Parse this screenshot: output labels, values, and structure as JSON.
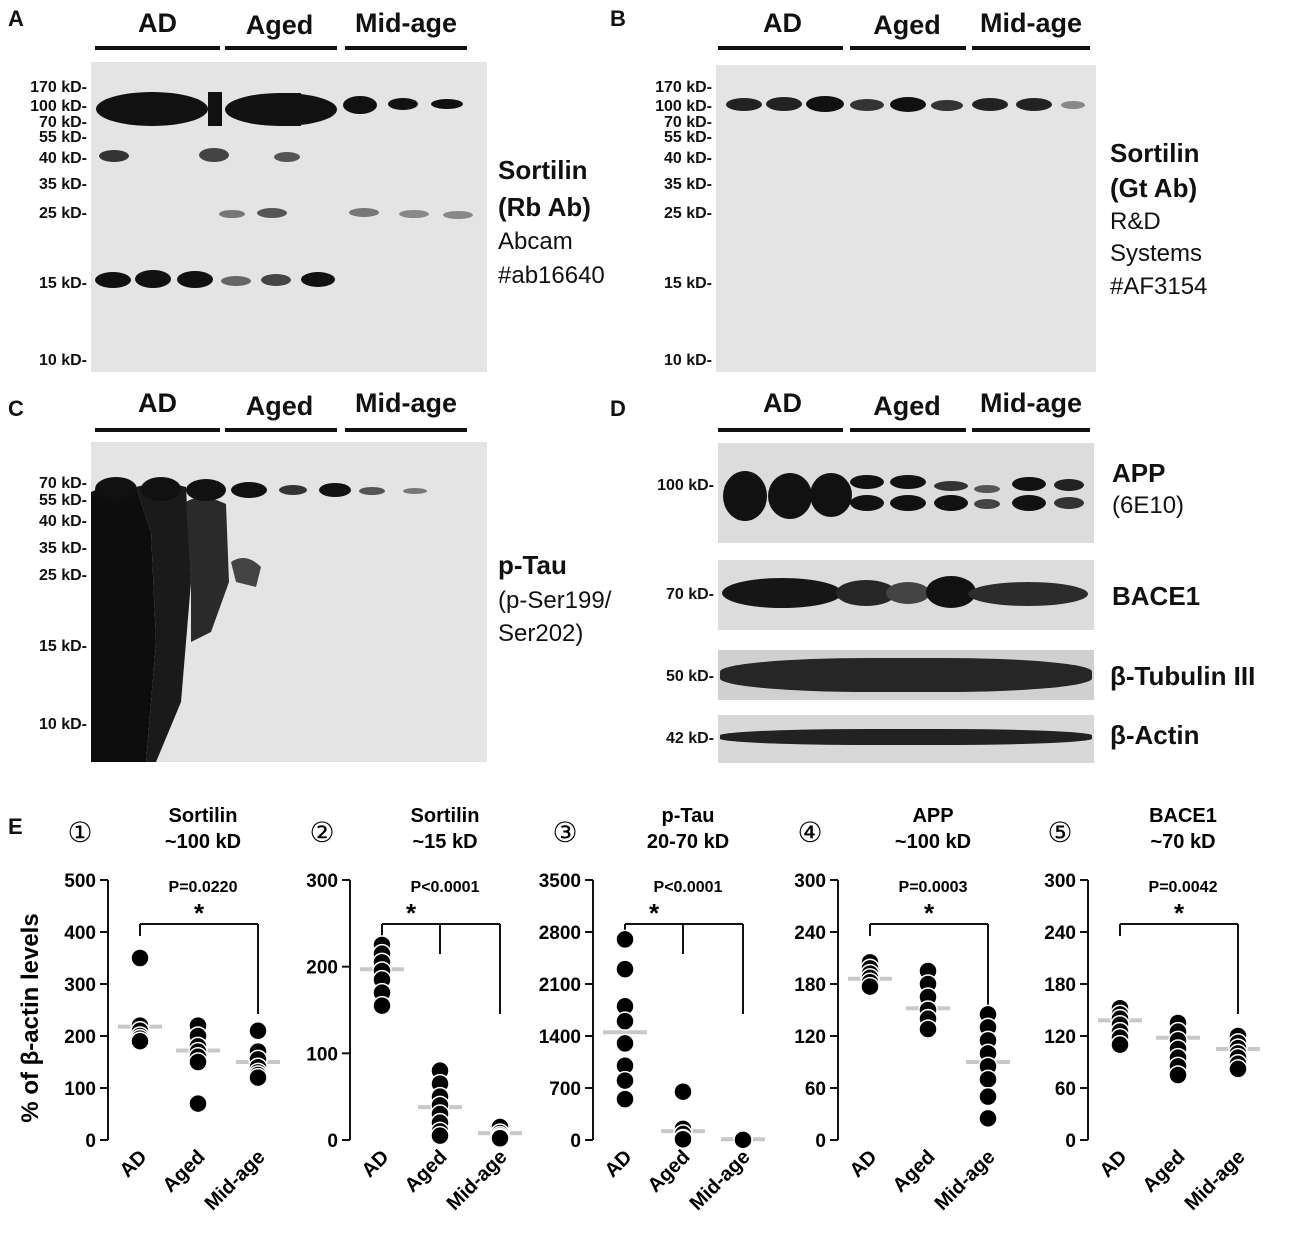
{
  "groups": [
    "AD",
    "Aged",
    "Mid-age"
  ],
  "panels": {
    "A": {
      "letter": "A",
      "mw": [
        "170 kD-",
        "100 kD-",
        "70 kD-",
        "55 kD-",
        "40 kD-",
        "35 kD-",
        "25 kD-",
        "15 kD-",
        "10 kD-"
      ],
      "label": [
        "Sortilin",
        "(Rb Ab)"
      ],
      "source": [
        "Abcam",
        "#ab16640"
      ]
    },
    "B": {
      "letter": "B",
      "mw": [
        "170 kD-",
        "100 kD-",
        "70 kD-",
        "55 kD-",
        "40 kD-",
        "35 kD-",
        "25 kD-",
        "15 kD-",
        "10 kD-"
      ],
      "label": [
        "Sortilin",
        "(Gt Ab)"
      ],
      "source": [
        "R&D",
        "Systems",
        "#AF3154"
      ]
    },
    "C": {
      "letter": "C",
      "mw": [
        "70 kD-",
        "55 kD-",
        "40 kD-",
        "35 kD-",
        "25 kD-",
        "15 kD-",
        "10 kD-"
      ],
      "label": "p-Tau",
      "source": [
        "(p-Ser199/",
        "Ser202)"
      ]
    },
    "D": {
      "letter": "D",
      "blots": [
        {
          "mw": "100 kD-",
          "label": "APP",
          "sub": "(6E10)"
        },
        {
          "mw": "70 kD-",
          "label": "BACE1",
          "sub": ""
        },
        {
          "mw": "50 kD-",
          "label": "β-Tubulin III",
          "sub": ""
        },
        {
          "mw": "42 kD-",
          "label": "β-Actin",
          "sub": ""
        }
      ]
    },
    "E": {
      "letter": "E",
      "ylabel": "% of β-actin levels"
    }
  },
  "chart_data": [
    {
      "type": "scatter",
      "index": "①",
      "title": [
        "Sortilin",
        "~100 kD"
      ],
      "pvalue": "P=0.0220",
      "categories": [
        "AD",
        "Aged",
        "Mid-age"
      ],
      "ylabel": "% of β-actin levels",
      "yticks": [
        "0",
        "100",
        "200",
        "300",
        "400",
        "500"
      ],
      "ylim": [
        0,
        500
      ],
      "significance": {
        "marker": "*",
        "from": "AD",
        "to": [
          "Mid-age"
        ]
      },
      "points": [
        [
          350,
          220,
          210,
          200,
          195,
          190
        ],
        [
          220,
          200,
          180,
          170,
          160,
          150,
          70
        ],
        [
          210,
          170,
          155,
          140,
          130,
          125,
          120
        ]
      ],
      "means": [
        218,
        172,
        150
      ]
    },
    {
      "type": "scatter",
      "index": "②",
      "title": [
        "Sortilin",
        "~15 kD"
      ],
      "pvalue": "P<0.0001",
      "categories": [
        "AD",
        "Aged",
        "Mid-age"
      ],
      "yticks": [
        "0",
        "100",
        "200",
        "300"
      ],
      "ylim": [
        0,
        300
      ],
      "significance": {
        "marker": "*",
        "from": "AD",
        "to": [
          "Aged",
          "Mid-age"
        ]
      },
      "points": [
        [
          225,
          215,
          205,
          195,
          185,
          170,
          155
        ],
        [
          80,
          65,
          50,
          40,
          30,
          20,
          10,
          5
        ],
        [
          15,
          8,
          5,
          3,
          2
        ]
      ],
      "means": [
        197,
        38,
        8
      ]
    },
    {
      "type": "scatter",
      "index": "③",
      "title": [
        "p-Tau",
        "20-70 kD"
      ],
      "pvalue": "P<0.0001",
      "categories": [
        "AD",
        "Aged",
        "Mid-age"
      ],
      "yticks": [
        "0",
        "700",
        "1400",
        "2100",
        "2800",
        "3500"
      ],
      "ylim": [
        0,
        3500
      ],
      "significance": {
        "marker": "*",
        "from": "AD",
        "to": [
          "Aged",
          "Mid-age"
        ]
      },
      "points": [
        [
          2700,
          2300,
          1800,
          1600,
          1300,
          1000,
          800,
          550
        ],
        [
          650,
          150,
          80,
          20,
          10
        ],
        [
          20,
          10,
          5,
          2
        ]
      ],
      "means": [
        1450,
        120,
        10
      ]
    },
    {
      "type": "scatter",
      "index": "④",
      "title": [
        "APP",
        "~100 kD"
      ],
      "pvalue": "P=0.0003",
      "categories": [
        "AD",
        "Aged",
        "Mid-age"
      ],
      "yticks": [
        "0",
        "60",
        "120",
        "180",
        "240",
        "300"
      ],
      "ylim": [
        0,
        300
      ],
      "significance": {
        "marker": "*",
        "from": "AD",
        "to": [
          "Mid-age"
        ]
      },
      "points": [
        [
          205,
          198,
          192,
          187,
          182,
          177
        ],
        [
          195,
          180,
          165,
          150,
          140,
          128
        ],
        [
          145,
          130,
          115,
          100,
          85,
          70,
          50,
          25
        ]
      ],
      "means": [
        186,
        152,
        90
      ]
    },
    {
      "type": "scatter",
      "index": "⑤",
      "title": [
        "BACE1",
        "~70 kD"
      ],
      "pvalue": "P=0.0042",
      "categories": [
        "AD",
        "Aged",
        "Mid-age"
      ],
      "yticks": [
        "0",
        "60",
        "120",
        "180",
        "240",
        "300"
      ],
      "ylim": [
        0,
        300
      ],
      "significance": {
        "marker": "*",
        "from": "AD",
        "to": [
          "Mid-age"
        ]
      },
      "points": [
        [
          152,
          145,
          140,
          133,
          125,
          118,
          110
        ],
        [
          135,
          125,
          115,
          105,
          95,
          85,
          75
        ],
        [
          120,
          112,
          106,
          100,
          95,
          88,
          82
        ]
      ],
      "means": [
        138,
        118,
        105
      ]
    }
  ]
}
